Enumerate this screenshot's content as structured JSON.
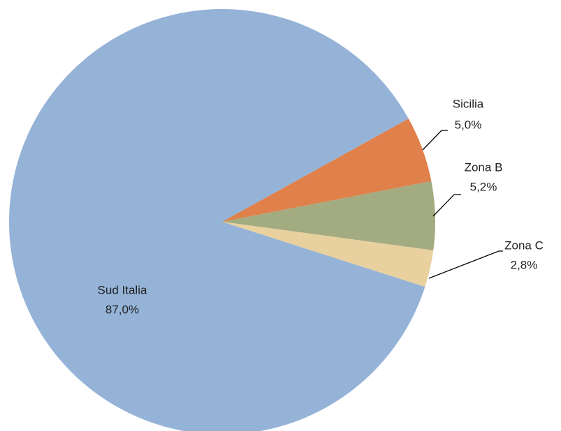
{
  "chart_data": {
    "type": "pie",
    "categories": [
      "Sud Italia",
      "Sicilia",
      "Zona B",
      "Zona C"
    ],
    "values": [
      87.0,
      5.0,
      5.2,
      2.8
    ],
    "value_labels": [
      "87,0%",
      "5,0%",
      "5,2%",
      "2,8%"
    ],
    "colors": [
      "#95b3d7",
      "#e0804a",
      "#a3ab80",
      "#e8d09f"
    ]
  }
}
